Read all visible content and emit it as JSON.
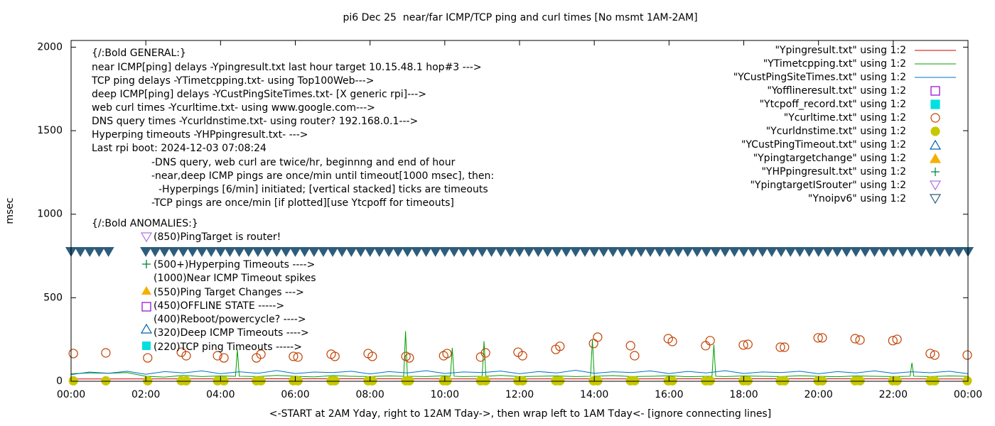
{
  "chart_data": {
    "type": "line",
    "title": "pi6 Dec 25  near/far ICMP/TCP ping and curl times [No msmt 1AM-2AM]",
    "xlabel": "<-START at 2AM Yday, right to 12AM Tday->, then wrap left to 1AM Tday<- [ignore connecting lines]",
    "ylabel": "msec",
    "xlim": [
      0,
      24
    ],
    "ylim": [
      0,
      2040
    ],
    "xticks": [
      {
        "value": 0,
        "label": "00:00"
      },
      {
        "value": 2,
        "label": "02:00"
      },
      {
        "value": 4,
        "label": "04:00"
      },
      {
        "value": 6,
        "label": "06:00"
      },
      {
        "value": 8,
        "label": "08:00"
      },
      {
        "value": 10,
        "label": "10:00"
      },
      {
        "value": 12,
        "label": "12:00"
      },
      {
        "value": 14,
        "label": "14:00"
      },
      {
        "value": 16,
        "label": "16:00"
      },
      {
        "value": 18,
        "label": "18:00"
      },
      {
        "value": 20,
        "label": "20:00"
      },
      {
        "value": 22,
        "label": "22:00"
      },
      {
        "value": 24,
        "label": "00:00"
      }
    ],
    "yticks": [
      0,
      500,
      1000,
      1500,
      2000
    ],
    "grid": false,
    "legend": "top-right",
    "annotations": [
      "{/:Bold GENERAL:}",
      "near ICMP[ping] delays -Ypingresult.txt last hour target 10.15.48.1 hop#3 --->",
      "TCP ping delays -YTimetcpping.txt- using Top100Web--->",
      "deep ICMP[ping] delays -YCustPingSiteTimes.txt- [X generic rpi]--->",
      "web curl times -Ycurltime.txt- using www.google.com--->",
      "DNS query times -Ycurldnstime.txt- using router? 192.168.0.1--->",
      "Hyperping timeouts -YHPpingresult.txt- --->",
      "Last rpi boot: 2024-12-03 07:08:24",
      "-DNS query, web curl are twice/hr, beginnng and end of hour",
      "-near,deep ICMP pings are once/min until timeout[1000 msec], then:",
      "-Hyperpings [6/min] initiated; [vertical stacked] ticks are timeouts",
      "-TCP pings are once/min [if plotted][use Ytcpoff for timeouts]",
      "{/:Bold ANOMALIES:}",
      "(850)PingTarget is router!",
      "(500+)Hyperping Timeouts ---->",
      "(1000)Near ICMP Timeout spikes",
      "(550)Ping Target Changes --->",
      "(450)OFFLINE STATE ----->",
      "(400)Reboot/powercycle? ---->",
      "(320)Deep ICMP Timeouts ---->",
      "(220)TCP ping Timeouts ----->"
    ],
    "series": [
      {
        "name": "\"Ypingresult.txt\" using 1:2",
        "type": "line",
        "color": "#d40000",
        "x": [
          0,
          6,
          12,
          18,
          24
        ],
        "values": [
          14,
          15,
          14,
          15,
          14
        ]
      },
      {
        "name": "\"YTimetcpping.txt\" using 1:2",
        "type": "line",
        "color": "#00a000",
        "x": [
          0,
          0.5,
          1,
          1.5,
          2,
          2.5,
          3,
          3.5,
          4,
          4.4,
          4.45,
          4.5,
          5,
          5.5,
          6,
          6.5,
          7,
          7.5,
          8,
          8.5,
          8.9,
          8.95,
          9,
          9.5,
          10,
          10.15,
          10.2,
          10.25,
          10.5,
          11,
          11.05,
          11.1,
          11.5,
          12,
          12.5,
          13,
          13.5,
          13.9,
          13.95,
          14,
          14.5,
          15,
          15.5,
          16,
          16.5,
          17,
          17.15,
          17.2,
          17.25,
          17.5,
          18,
          18.5,
          19,
          19.5,
          20,
          20.5,
          21,
          21.5,
          22,
          22.45,
          22.5,
          22.55,
          23,
          23.5,
          24
        ],
        "values": [
          45,
          50,
          48,
          52,
          30,
          25,
          35,
          28,
          32,
          30,
          190,
          30,
          28,
          35,
          30,
          26,
          34,
          30,
          28,
          32,
          30,
          300,
          30,
          28,
          33,
          30,
          200,
          30,
          28,
          30,
          240,
          30,
          35,
          28,
          30,
          32,
          28,
          30,
          250,
          30,
          34,
          28,
          30,
          33,
          27,
          30,
          30,
          220,
          30,
          28,
          32,
          30,
          28,
          33,
          30,
          27,
          32,
          30,
          28,
          30,
          110,
          30,
          28,
          32,
          30
        ]
      },
      {
        "name": "\"YCustPingSiteTimes.txt\" using 1:2",
        "type": "line",
        "color": "#0070c8",
        "x": [
          0,
          0.5,
          1,
          1.5,
          2,
          2.5,
          3,
          3.5,
          4,
          4.5,
          5,
          5.5,
          6,
          6.5,
          7,
          7.5,
          8,
          8.5,
          9,
          9.5,
          10,
          10.5,
          11,
          11.5,
          12,
          12.5,
          13,
          13.5,
          14,
          14.5,
          15,
          15.5,
          16,
          16.5,
          17,
          17.5,
          18,
          18.5,
          19,
          19.5,
          20,
          20.5,
          21,
          21.5,
          22,
          22.5,
          23,
          23.5,
          24
        ],
        "values": [
          40,
          55,
          48,
          60,
          42,
          58,
          50,
          62,
          45,
          57,
          48,
          64,
          46,
          55,
          52,
          60,
          44,
          58,
          50,
          63,
          47,
          56,
          52,
          61,
          45,
          58,
          50,
          66,
          48,
          57,
          52,
          62,
          46,
          59,
          50,
          63,
          47,
          56,
          52,
          60,
          45,
          58,
          50,
          62,
          48,
          57,
          51,
          60,
          45
        ]
      },
      {
        "name": "\"Yofflineresult.txt\" using 1:2",
        "type": "scatter",
        "marker": "square",
        "filled": false,
        "color": "#9400d3",
        "x": [],
        "values": []
      },
      {
        "name": "\"Ytcpoff_record.txt\" using 1:2",
        "type": "scatter",
        "marker": "square",
        "filled": true,
        "color": "#00e0e0",
        "x": [],
        "values": []
      },
      {
        "name": "\"Ycurltime.txt\" using 1:2",
        "type": "scatter",
        "marker": "circle",
        "filled": false,
        "color": "#c04000",
        "x": [
          0.06,
          0.93,
          2.05,
          2.95,
          3.08,
          3.92,
          4.09,
          4.96,
          5.08,
          5.95,
          6.07,
          6.96,
          7.06,
          7.95,
          8.06,
          8.96,
          9.05,
          9.97,
          10.06,
          10.96,
          11.09,
          11.96,
          12.08,
          12.97,
          13.08,
          13.98,
          14.09,
          14.97,
          15.08,
          15.98,
          16.09,
          16.98,
          17.1,
          17.99,
          18.11,
          18.98,
          19.09,
          19.99,
          20.1,
          20.98,
          21.11,
          21.99,
          22.1,
          22.99,
          23.11,
          23.98
        ],
        "values": [
          166,
          170,
          140,
          174,
          153,
          153,
          140,
          140,
          162,
          149,
          145,
          162,
          149,
          166,
          149,
          149,
          140,
          153,
          166,
          145,
          170,
          174,
          153,
          191,
          209,
          226,
          264,
          213,
          153,
          255,
          238,
          213,
          243,
          217,
          221,
          204,
          204,
          260,
          260,
          255,
          247,
          243,
          251,
          166,
          157,
          157
        ]
      },
      {
        "name": "\"Ycurldnstime.txt\" using 1:2",
        "type": "scatter",
        "marker": "circle",
        "filled": true,
        "color": "#c8c800",
        "x": [
          0.06,
          0.93,
          2.05,
          2.95,
          3.08,
          3.92,
          4.09,
          4.96,
          5.08,
          5.95,
          6.07,
          6.96,
          7.06,
          7.95,
          8.06,
          8.96,
          9.05,
          9.97,
          10.06,
          10.96,
          11.09,
          11.96,
          12.08,
          12.97,
          13.08,
          13.98,
          14.09,
          14.97,
          15.08,
          15.98,
          16.09,
          16.98,
          17.1,
          17.99,
          18.11,
          18.98,
          19.09,
          19.99,
          20.1,
          20.98,
          21.11,
          21.99,
          22.1,
          22.99,
          23.11,
          23.98
        ],
        "values": [
          3,
          3,
          3,
          3,
          3,
          3,
          3,
          3,
          3,
          3,
          3,
          3,
          3,
          3,
          3,
          3,
          3,
          3,
          3,
          3,
          3,
          3,
          3,
          3,
          3,
          3,
          3,
          3,
          3,
          3,
          3,
          3,
          3,
          3,
          3,
          3,
          3,
          3,
          3,
          3,
          3,
          3,
          3,
          3,
          3,
          3
        ]
      },
      {
        "name": "\"YCustPingTimeout.txt\" using 1:2",
        "type": "scatter",
        "marker": "triangle-up",
        "filled": false,
        "color": "#0060ad",
        "x": [],
        "values": []
      },
      {
        "name": "\"Ypingtargetchange\" using 1:2",
        "type": "scatter",
        "marker": "triangle-up",
        "filled": true,
        "color": "#f4b000",
        "x": [],
        "values": []
      },
      {
        "name": "\"YHPpingresult.txt\" using 1:2",
        "type": "scatter",
        "marker": "plus",
        "filled": false,
        "color": "#008040",
        "x": [],
        "values": []
      },
      {
        "name": "\"YpingtargetISrouter\" using 1:2",
        "type": "scatter",
        "marker": "triangle-down",
        "filled": false,
        "color": "#b070e0",
        "x": [],
        "values": []
      },
      {
        "name": "\"Ynoipv6\" using 1:2",
        "type": "scatter",
        "marker": "triangle-down",
        "filled": true,
        "color": "#2d5d7b",
        "x": [
          0,
          0.25,
          0.5,
          0.75,
          1,
          2,
          2.25,
          2.5,
          2.75,
          3,
          3.25,
          3.5,
          3.75,
          4,
          4.25,
          4.5,
          4.75,
          5,
          5.25,
          5.5,
          5.75,
          6,
          6.25,
          6.5,
          6.75,
          7,
          7.25,
          7.5,
          7.75,
          8,
          8.25,
          8.5,
          8.75,
          9,
          9.25,
          9.5,
          9.75,
          10,
          10.25,
          10.5,
          10.75,
          11,
          11.25,
          11.5,
          11.75,
          12,
          12.25,
          12.5,
          12.75,
          13,
          13.25,
          13.5,
          13.75,
          14,
          14.25,
          14.5,
          14.75,
          15,
          15.25,
          15.5,
          15.75,
          16,
          16.25,
          16.5,
          16.75,
          17,
          17.25,
          17.5,
          17.75,
          18,
          18.25,
          18.5,
          18.75,
          19,
          19.25,
          19.5,
          19.75,
          20,
          20.25,
          20.5,
          20.75,
          21,
          21.25,
          21.5,
          21.75,
          22,
          22.25,
          22.5,
          22.75,
          23,
          23.25,
          23.5,
          23.75,
          24
        ],
        "values": [
          775,
          775,
          775,
          775,
          775,
          775,
          775,
          775,
          775,
          775,
          775,
          775,
          775,
          775,
          775,
          775,
          775,
          775,
          775,
          775,
          775,
          775,
          775,
          775,
          775,
          775,
          775,
          775,
          775,
          775,
          775,
          775,
          775,
          775,
          775,
          775,
          775,
          775,
          775,
          775,
          775,
          775,
          775,
          775,
          775,
          775,
          775,
          775,
          775,
          775,
          775,
          775,
          775,
          775,
          775,
          775,
          775,
          775,
          775,
          775,
          775,
          775,
          775,
          775,
          775,
          775,
          775,
          775,
          775,
          775,
          775,
          775,
          775,
          775,
          775,
          775,
          775,
          775,
          775,
          775,
          775,
          775,
          775,
          775,
          775,
          775,
          775,
          775,
          775,
          775,
          775,
          775,
          775,
          775
        ]
      }
    ]
  }
}
